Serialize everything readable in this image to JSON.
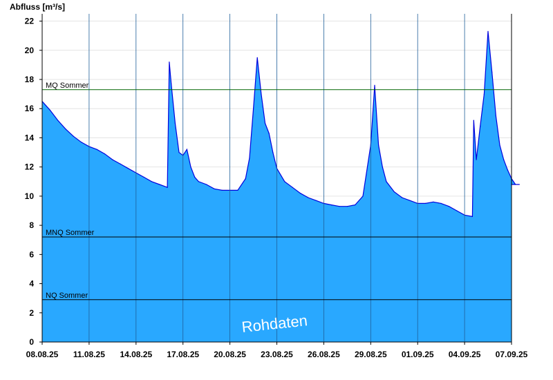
{
  "chart_data": {
    "type": "area",
    "ylabel": "Abfluss [m³/s]",
    "watermark": "Rohdaten",
    "ylim": [
      0,
      22.5
    ],
    "yticks": [
      0,
      2,
      4,
      6,
      8,
      10,
      12,
      14,
      16,
      18,
      20,
      22
    ],
    "xlim": [
      "08.08.25",
      "07.09.25"
    ],
    "xticks": [
      "08.08.25",
      "11.08.25",
      "14.08.25",
      "17.08.25",
      "20.08.25",
      "23.08.25",
      "26.08.25",
      "29.08.25",
      "01.09.25",
      "04.09.25",
      "07.09.25"
    ],
    "grid": true,
    "colors": {
      "fill": "#29a8ff",
      "line": "#0000dd",
      "mq_line": "#006400",
      "ref_line": "#000000"
    },
    "reference_lines": [
      {
        "name": "MQ Sommer",
        "value": 17.3
      },
      {
        "name": "MNQ Sommer",
        "value": 7.2
      },
      {
        "name": "NQ Sommer",
        "value": 2.9
      }
    ],
    "series": [
      {
        "x": [
          "08.08.25 00:00",
          "08.08.25 12:00",
          "09.08.25 00:00",
          "09.08.25 12:00",
          "10.08.25 00:00",
          "10.08.25 12:00",
          "11.08.25 00:00",
          "11.08.25 12:00",
          "12.08.25 00:00",
          "12.08.25 12:00",
          "13.08.25 00:00",
          "13.08.25 12:00",
          "14.08.25 00:00",
          "14.08.25 12:00",
          "15.08.25 00:00",
          "15.08.25 12:00",
          "16.08.25 00:00",
          "16.08.25 03:00",
          "16.08.25 06:00",
          "16.08.25 12:00",
          "16.08.25 18:00",
          "17.08.25 00:00",
          "17.08.25 06:00",
          "17.08.25 12:00",
          "17.08.25 18:00",
          "18.08.25 00:00",
          "18.08.25 12:00",
          "19.08.25 00:00",
          "19.08.25 12:00",
          "20.08.25 00:00",
          "20.08.25 12:00",
          "21.08.25 00:00",
          "21.08.25 06:00",
          "21.08.25 12:00",
          "21.08.25 18:00",
          "22.08.25 00:00",
          "22.08.25 06:00",
          "22.08.25 12:00",
          "22.08.25 18:00",
          "23.08.25 00:00",
          "23.08.25 12:00",
          "24.08.25 00:00",
          "24.08.25 12:00",
          "25.08.25 00:00",
          "25.08.25 12:00",
          "26.08.25 00:00",
          "26.08.25 12:00",
          "27.08.25 00:00",
          "27.08.25 12:00",
          "28.08.25 00:00",
          "28.08.25 12:00",
          "29.08.25 00:00",
          "29.08.25 06:00",
          "29.08.25 12:00",
          "29.08.25 18:00",
          "30.08.25 00:00",
          "30.08.25 12:00",
          "31.08.25 00:00",
          "31.08.25 12:00",
          "01.09.25 00:00",
          "01.09.25 12:00",
          "02.09.25 00:00",
          "02.09.25 12:00",
          "03.09.25 00:00",
          "03.09.25 12:00",
          "04.09.25 00:00",
          "04.09.25 12:00",
          "04.09.25 14:00",
          "04.09.25 18:00",
          "05.09.25 00:00",
          "05.09.25 06:00",
          "05.09.25 12:00",
          "05.09.25 18:00",
          "06.09.25 00:00",
          "06.09.25 06:00",
          "06.09.25 12:00",
          "06.09.25 18:00",
          "07.09.25 00:00",
          "07.09.25 06:00",
          "07.09.25 12:00"
        ],
        "y": [
          16.5,
          15.9,
          15.2,
          14.6,
          14.1,
          13.7,
          13.4,
          13.2,
          12.9,
          12.5,
          12.2,
          11.9,
          11.6,
          11.3,
          11.0,
          10.8,
          10.6,
          19.2,
          17.7,
          15.0,
          13.0,
          12.8,
          13.2,
          12.0,
          11.3,
          11.0,
          10.8,
          10.5,
          10.4,
          10.4,
          10.4,
          11.2,
          12.6,
          16.0,
          19.5,
          17.0,
          15.0,
          14.3,
          13.0,
          11.9,
          11.0,
          10.6,
          10.2,
          9.9,
          9.7,
          9.5,
          9.4,
          9.3,
          9.3,
          9.4,
          10.0,
          13.5,
          17.6,
          13.5,
          12.0,
          11.0,
          10.3,
          9.9,
          9.7,
          9.5,
          9.5,
          9.6,
          9.5,
          9.3,
          9.0,
          8.7,
          8.6,
          15.2,
          12.5,
          14.8,
          17.0,
          21.3,
          18.5,
          15.5,
          13.5,
          12.5,
          11.8,
          11.2,
          10.8,
          10.8
        ]
      }
    ]
  }
}
